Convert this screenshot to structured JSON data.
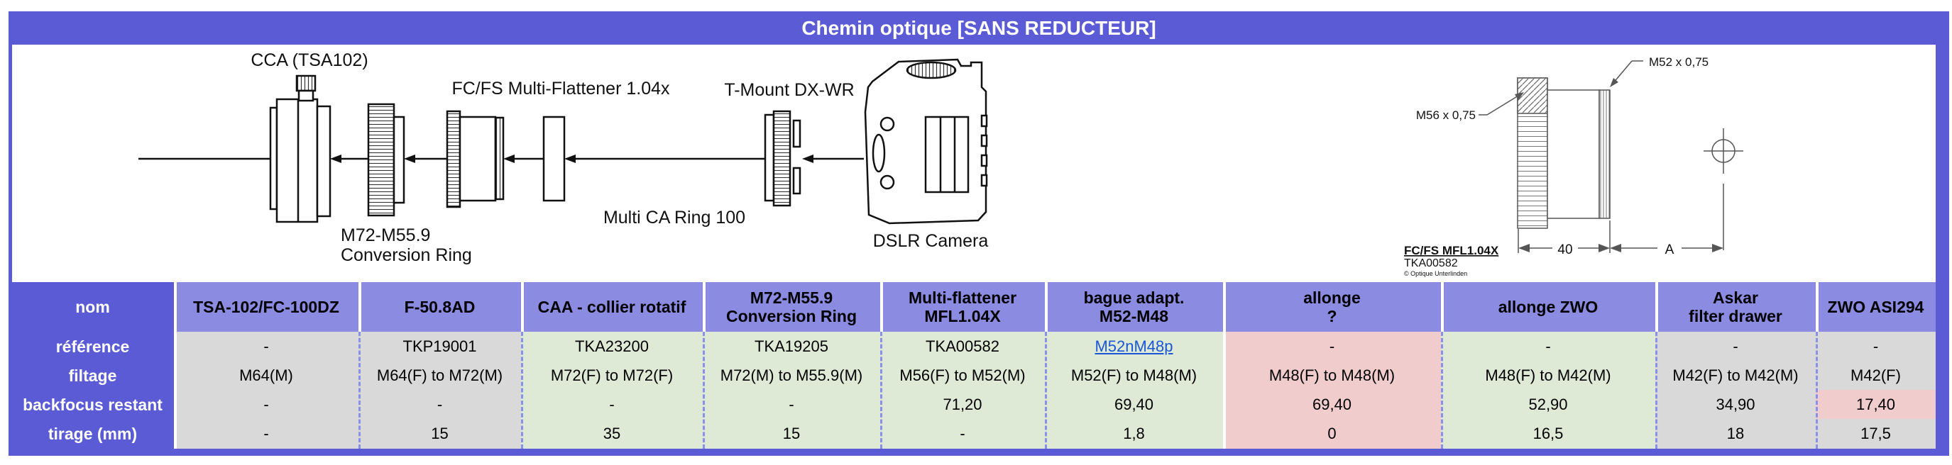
{
  "title": "Chemin optique [SANS REDUCTEUR]",
  "colors": {
    "blue": "#5a5bd5",
    "header_purple": "#8b8be2",
    "gray": "#d9d9d9",
    "green": "#deead6",
    "pink": "#f1cccc",
    "link_blue": "#1a56d6",
    "dashed_grid": "#8a90e8"
  },
  "diagram": {
    "labels": {
      "cca": "CCA (TSA102)",
      "flattener": "FC/FS Multi-Flattener 1.04x",
      "conversion_ring_1": "M72-M55.9",
      "conversion_ring_2": "Conversion Ring",
      "ca_ring": "Multi CA Ring 100",
      "t_mount": "T-Mount DX-WR",
      "dslr": "DSLR Camera"
    },
    "tech_drawing": {
      "thread_top": "M52 x 0,75",
      "thread_left": "M56 x 0,75",
      "dim_length": "40",
      "dim_a": "A",
      "product": "FC/FS MFL1.04X",
      "reference": "TKA00582",
      "credit": "© Optique Unterlinden"
    }
  },
  "table": {
    "corner_label": "nom",
    "row_labels": [
      "référence",
      "filtage",
      "backfocus restant",
      "tirage (mm)"
    ],
    "columns": [
      {
        "label": "TSA-102/FC-100DZ",
        "color": "gray",
        "reference": "-",
        "filtage": "M64(M)",
        "backfocus": "-",
        "tirage": "-"
      },
      {
        "label": "F-50.8AD",
        "color": "gray",
        "reference": "TKP19001",
        "filtage": "M64(F) to M72(M)",
        "backfocus": "-",
        "tirage": "15"
      },
      {
        "label": "CAA - collier rotatif",
        "color": "green",
        "reference": "TKA23200",
        "filtage": "M72(F) to M72(F)",
        "backfocus": "-",
        "tirage": "35"
      },
      {
        "label": "M72-M55.9\nConversion Ring",
        "color": "green",
        "reference": "TKA19205",
        "filtage": "M72(M) to M55.9(M)",
        "backfocus": "-",
        "tirage": "15"
      },
      {
        "label": "Multi-flattener\nMFL1.04X",
        "color": "green",
        "reference": "TKA00582",
        "filtage": "M56(F) to M52(M)",
        "backfocus": "71,20",
        "tirage": "-"
      },
      {
        "label": "bague adapt.\nM52-M48",
        "color": "green",
        "reference": "M52nM48p",
        "reference_is_link": true,
        "filtage": "M52(F) to M48(M)",
        "backfocus": "69,40",
        "tirage": "1,8"
      },
      {
        "label": "allonge\n?",
        "color": "pink",
        "reference": "-",
        "filtage": "M48(F) to M48(M)",
        "backfocus": "69,40",
        "tirage": "0"
      },
      {
        "label": "allonge ZWO",
        "color": "green",
        "reference": "-",
        "filtage": "M48(F) to M42(M)",
        "backfocus": "52,90",
        "tirage": "16,5"
      },
      {
        "label": "Askar\nfilter drawer",
        "color": "gray",
        "reference": "-",
        "filtage": "M42(F) to M42(M)",
        "backfocus": "34,90",
        "tirage": "18"
      },
      {
        "label": "ZWO ASI294",
        "color": "gray",
        "reference": "-",
        "filtage": "M42(F)",
        "backfocus": "17,40",
        "backfocus_color": "pink",
        "tirage": "17,5"
      }
    ]
  }
}
